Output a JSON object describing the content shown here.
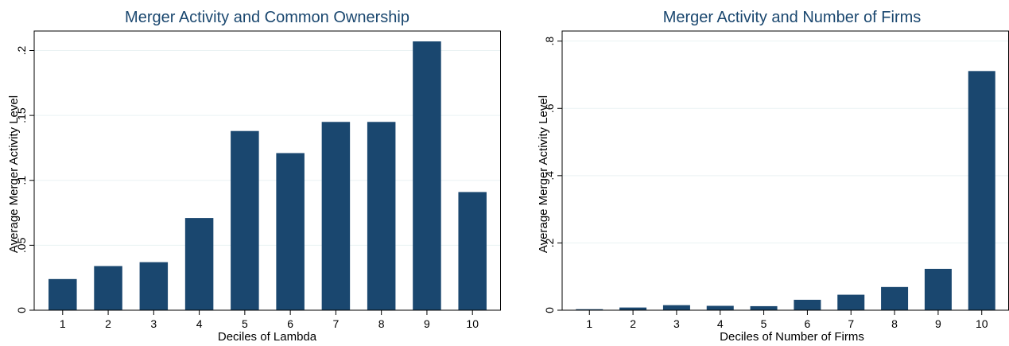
{
  "colors": {
    "title": "#1a476f",
    "bar": "#1a476f",
    "grid": "#eaf2f3",
    "axis": "#000000",
    "text": "#000000"
  },
  "chart_data": [
    {
      "type": "bar",
      "title": "Merger Activity and Common Ownership",
      "xlabel": "Deciles of Lambda",
      "ylabel": "Average Merger Activity Level",
      "categories": [
        "1",
        "2",
        "3",
        "4",
        "5",
        "6",
        "7",
        "8",
        "9",
        "10"
      ],
      "values": [
        0.024,
        0.034,
        0.037,
        0.071,
        0.138,
        0.121,
        0.145,
        0.145,
        0.207,
        0.091
      ],
      "ylim": [
        0,
        0.215
      ],
      "yticks": [
        0,
        0.05,
        0.1,
        0.15,
        0.2
      ],
      "ytick_labels": [
        "0",
        ".05",
        ".1",
        ".15",
        ".2"
      ],
      "grid": true
    },
    {
      "type": "bar",
      "title": "Merger Activity and Number of Firms",
      "xlabel": "Deciles of Number of Firms",
      "ylabel": "Average Merger Activity Level",
      "categories": [
        "1",
        "2",
        "3",
        "4",
        "5",
        "6",
        "7",
        "8",
        "9",
        "10"
      ],
      "values": [
        0.003,
        0.008,
        0.015,
        0.013,
        0.012,
        0.031,
        0.046,
        0.069,
        0.123,
        0.711
      ],
      "ylim": [
        0,
        0.83
      ],
      "yticks": [
        0,
        0.2,
        0.4,
        0.6,
        0.8
      ],
      "ytick_labels": [
        "0",
        ".2",
        ".4",
        ".6",
        ".8"
      ],
      "grid": true
    }
  ]
}
